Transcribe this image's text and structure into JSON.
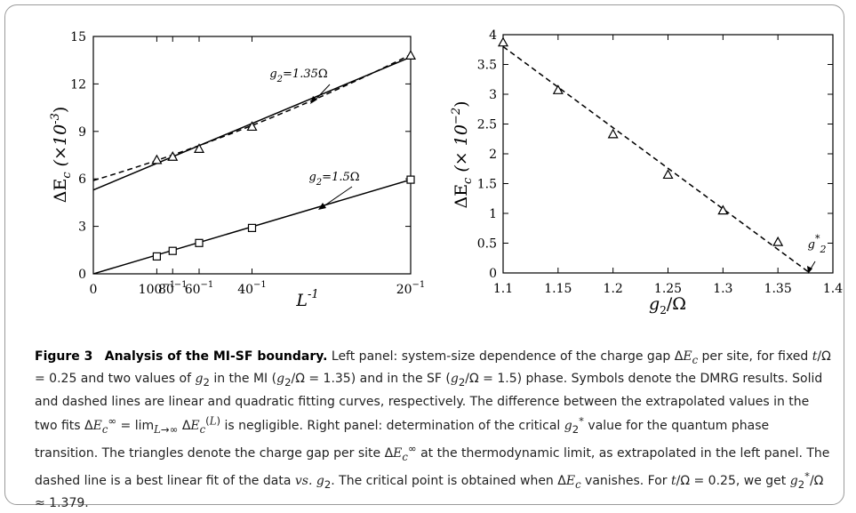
{
  "chart_data": [
    {
      "type": "line",
      "x_label_main": "L",
      "x_label_exp": "-1",
      "y_label_main": "ΔE",
      "y_label_sub": "c",
      "y_label_paren": "(×10",
      "y_label_exp": "-3",
      "y_label_close": ")",
      "xlim": [
        0,
        0.05
      ],
      "ylim": [
        0,
        15
      ],
      "yticks": [
        "0",
        "3",
        "6",
        "9",
        "12",
        "15"
      ],
      "xticks": [
        {
          "value": 0,
          "base": "0",
          "exp": ""
        },
        {
          "value": 0.01,
          "base": "100",
          "exp": "−1"
        },
        {
          "value": 0.0125,
          "base": "80",
          "exp": "−1"
        },
        {
          "value": 0.016667,
          "base": "60",
          "exp": "−1"
        },
        {
          "value": 0.025,
          "base": "40",
          "exp": "−1"
        },
        {
          "value": 0.05,
          "base": "20",
          "exp": "−1"
        }
      ],
      "series": [
        {
          "marker": "triangle",
          "x": [
            0.01,
            0.0125,
            0.016667,
            0.025,
            0.05
          ],
          "y": [
            7.2,
            7.4,
            7.9,
            9.3,
            13.8
          ],
          "linear_fit": {
            "intercept": 5.3,
            "slope": 168
          },
          "quadratic_fit": {
            "a": 5.9,
            "b": 119,
            "c": 800
          }
        },
        {
          "marker": "square",
          "x": [
            0.01,
            0.0125,
            0.016667,
            0.025,
            0.05
          ],
          "y": [
            1.1,
            1.45,
            1.95,
            2.9,
            5.95
          ],
          "linear_fit": {
            "intercept": 0.0,
            "slope": 119
          }
        }
      ],
      "annotations": [
        {
          "var": "g",
          "sub": "2",
          "eq": "=1.35",
          "sym": "Ω"
        },
        {
          "var": "g",
          "sub": "2",
          "eq": "=1.5",
          "sym": "Ω"
        }
      ]
    },
    {
      "type": "line",
      "x_label_main": "g",
      "x_label_sub": "2",
      "x_label_rest": "/Ω",
      "y_label_main": "ΔE",
      "y_label_sub": "c",
      "y_label_paren": "(× 10",
      "y_label_exp": "−2",
      "y_label_close": ")",
      "xlim": [
        1.1,
        1.4
      ],
      "ylim": [
        0,
        4
      ],
      "xticks": [
        "1.1",
        "1.15",
        "1.2",
        "1.25",
        "1.3",
        "1.35",
        "1.4"
      ],
      "yticks": [
        "0",
        "0.5",
        "1",
        "1.5",
        "2",
        "2.5",
        "3",
        "3.5",
        "4"
      ],
      "series": [
        {
          "marker": "triangle",
          "x": [
            1.1,
            1.15,
            1.2,
            1.25,
            1.3,
            1.35
          ],
          "y": [
            3.87,
            3.07,
            2.33,
            1.65,
            1.05,
            0.52
          ],
          "linear_fit": {
            "x0": 1.1,
            "y0": 3.8,
            "x1": 1.379,
            "y1": 0
          }
        }
      ],
      "annotation": {
        "var": "g",
        "sub": "2",
        "sup": "*",
        "x": 1.379
      }
    }
  ],
  "caption": {
    "figure_number": "Figure 3",
    "title": "Analysis of the MI-SF boundary.",
    "body_html": "Left panel: system-size dependence of the charge gap Δ<i>E</i><sub><i>c</i></sub> per site, for fixed <i>t</i>/Ω = 0.25 and two values of <i>g</i><sub>2</sub> in the MI (<i>g</i><sub>2</sub>/Ω = 1.35) and in the SF (<i>g</i><sub>2</sub>/Ω = 1.5) phase. Symbols denote the DMRG results. Solid and dashed lines are linear and quadratic fitting curves, respectively. The difference between the extrapolated values in the two fits Δ<i>E</i><sub><i>c</i></sub><sup>∞</sup> = lim<sub><i>L</i>→∞</sub> Δ<i>E</i><sub><i>c</i></sub><sup>(<i>L</i>)</sup> is negligible. Right panel: determination of the critical <i>g</i><sub>2</sub><sup>*</sup> value for the quantum phase transition. The triangles denote the charge gap per site Δ<i>E</i><sub><i>c</i></sub><sup>∞</sup> at the thermodynamic limit, as extrapolated in the left panel. The dashed line is a best linear fit of the data <i>vs.</i> <i>g</i><sub>2</sub>. The critical point is obtained when Δ<i>E</i><sub><i>c</i></sub> vanishes. For <i>t</i>/Ω = 0.25, we get <i>g</i><sub>2</sub><sup>*</sup>/Ω ≈ 1.379."
  }
}
